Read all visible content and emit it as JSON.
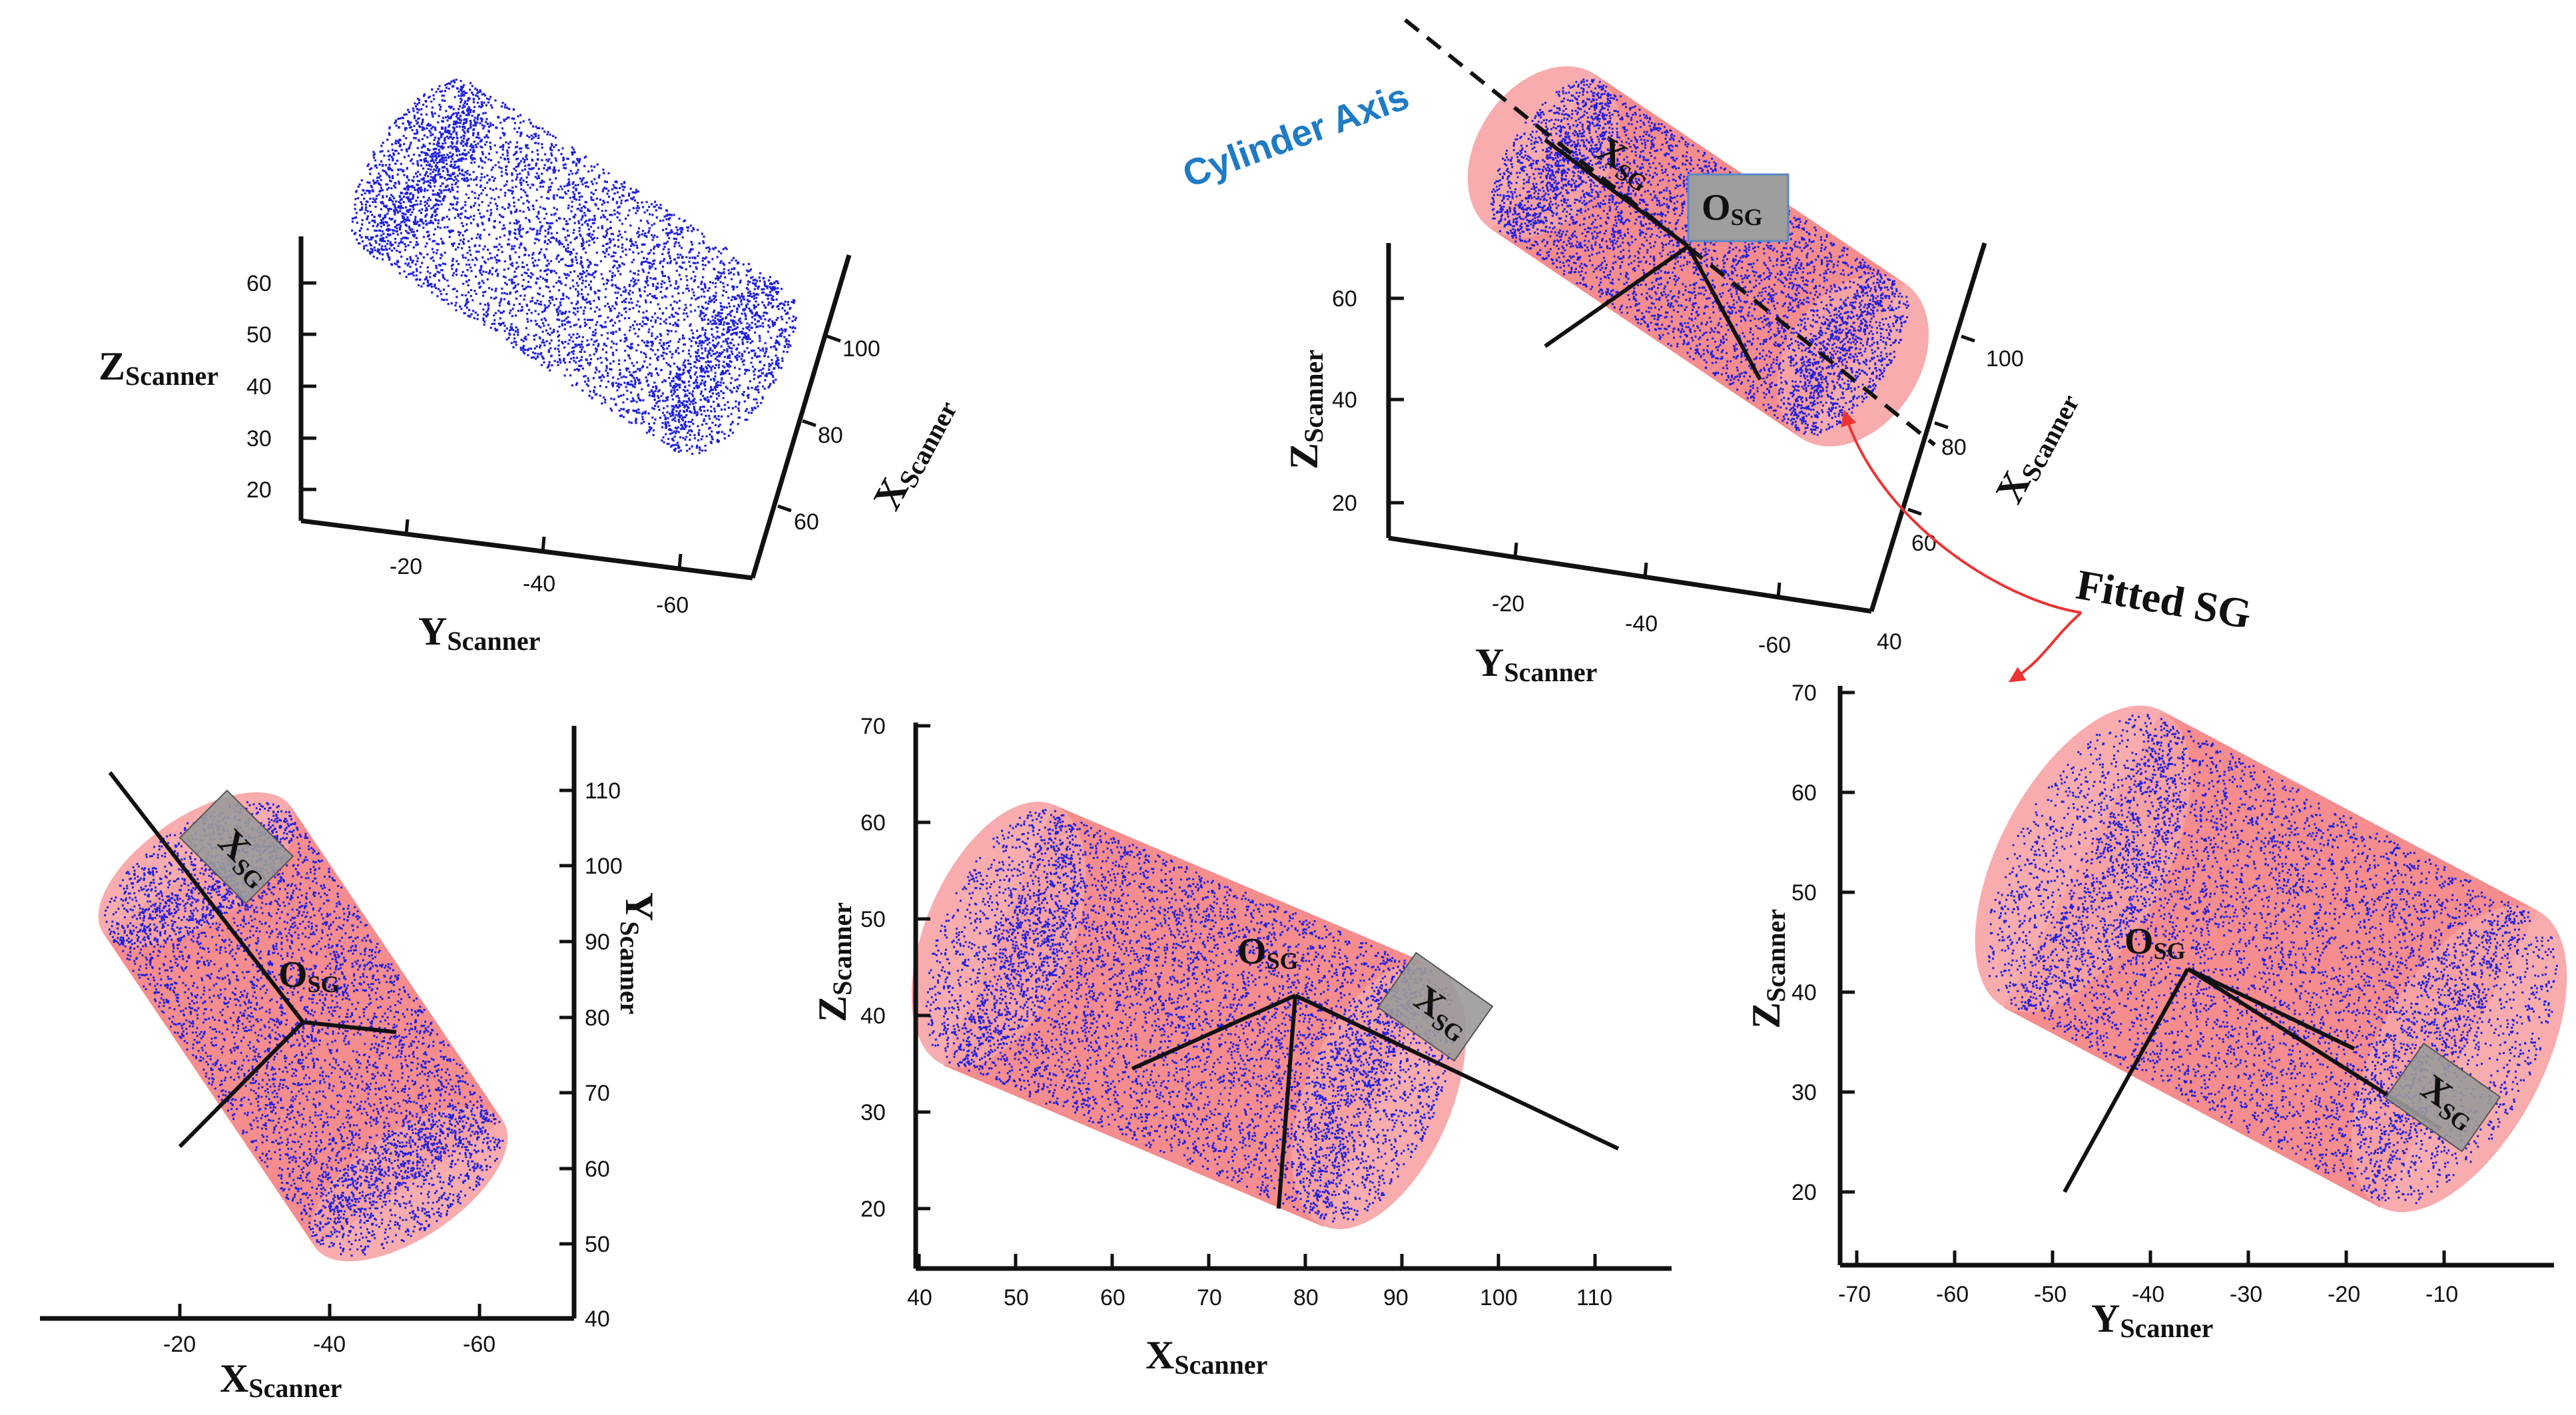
{
  "colors": {
    "points": "#1f1fe0",
    "cylinder": "#f3787a",
    "cap": "#f7a3a4",
    "annotation": "#1f7bc4",
    "arrow": "#ee3333"
  },
  "annotations": {
    "cylinder_axis": "Cylinder Axis",
    "fitted_sg": "Fitted  SG"
  },
  "labels": {
    "scanner": "Scanner",
    "x": "X",
    "y": "Y",
    "z": "Z",
    "sg": "SG",
    "x_sg_main": "X",
    "o_sg_main": "O"
  },
  "panels": {
    "p1": {
      "z_ticks": [
        "60",
        "50",
        "40",
        "30",
        "20"
      ],
      "y_ticks": [
        "-20",
        "-40",
        "-60"
      ],
      "x_ticks": [
        "100",
        "80",
        "60"
      ]
    },
    "p2": {
      "z_ticks": [
        "60",
        "40",
        "20"
      ],
      "y_ticks": [
        "-20",
        "-40",
        "-60"
      ],
      "x_ticks": [
        "100",
        "80",
        "60",
        "40"
      ]
    },
    "p3": {
      "y_ticks": [
        "110",
        "100",
        "90",
        "80",
        "70",
        "60",
        "50",
        "40"
      ],
      "x_ticks": [
        "-20",
        "-40",
        "-60"
      ]
    },
    "p4": {
      "z_ticks": [
        "70",
        "60",
        "50",
        "40",
        "30",
        "20"
      ],
      "x_ticks": [
        "40",
        "50",
        "60",
        "70",
        "80",
        "90",
        "100",
        "110"
      ]
    },
    "p5": {
      "z_ticks": [
        "70",
        "60",
        "50",
        "40",
        "30",
        "20"
      ],
      "y_ticks": [
        "-70",
        "-60",
        "-50",
        "-40",
        "-30",
        "-20",
        "-10"
      ]
    }
  }
}
